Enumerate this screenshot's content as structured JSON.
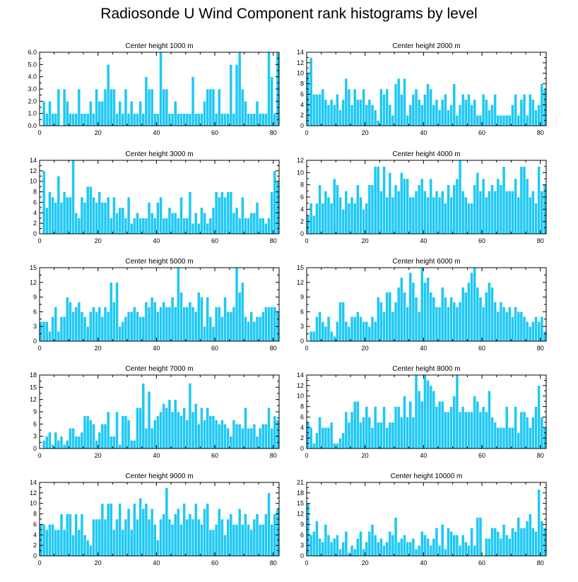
{
  "figure": {
    "title": "Radiosonde U Wind Component rank histograms by level",
    "bar_color": "#1ec8f5"
  },
  "chart_data": [
    {
      "type": "bar",
      "title": "Center height 1000 m",
      "xlim": [
        0,
        82
      ],
      "ylim": [
        0,
        6
      ],
      "yticks": [
        "0.0",
        "1.0",
        "2.0",
        "3.0",
        "4.0",
        "5.0",
        "6.0"
      ],
      "xticks": [
        "0",
        "20",
        "40",
        "60",
        "80"
      ],
      "values": [
        0,
        2,
        1,
        2,
        1,
        1,
        3,
        0,
        3,
        2,
        1,
        1,
        1,
        3,
        1,
        1,
        1,
        2,
        1,
        3,
        2,
        2,
        3,
        5,
        3,
        3,
        1,
        2,
        1,
        3,
        1,
        2,
        1,
        1,
        2,
        1,
        4,
        3,
        3,
        1,
        1,
        6,
        3,
        3,
        1,
        1,
        2,
        1,
        1,
        1,
        1,
        1,
        4,
        1,
        1,
        1,
        2,
        3,
        3,
        3,
        1,
        3,
        1,
        1,
        1,
        5,
        1,
        5,
        6,
        3,
        2,
        1,
        1,
        1,
        2,
        1,
        1,
        1,
        6,
        4,
        1,
        6
      ]
    },
    {
      "type": "bar",
      "title": "Center height 2000 m",
      "xlim": [
        0,
        82
      ],
      "ylim": [
        0,
        14
      ],
      "yticks": [
        "0",
        "2",
        "4",
        "6",
        "8",
        "10",
        "12",
        "14"
      ],
      "xticks": [
        "0",
        "20",
        "40",
        "60",
        "80"
      ],
      "values": [
        10,
        13,
        6,
        6,
        6,
        7,
        5,
        4,
        5,
        4,
        6,
        3,
        5,
        9,
        7,
        4,
        7,
        5,
        5,
        7,
        4,
        5,
        4,
        3,
        1,
        7,
        6,
        7,
        4,
        2,
        8,
        9,
        6,
        9,
        2,
        4,
        6,
        7,
        5,
        4,
        6,
        8,
        7,
        4,
        5,
        3,
        5,
        6,
        3,
        4,
        8,
        2,
        4,
        6,
        5,
        6,
        4,
        5,
        2,
        2,
        6,
        5,
        3,
        4,
        6,
        2,
        2,
        2,
        2,
        2,
        4,
        6,
        2,
        5,
        6,
        2,
        6,
        5,
        3,
        4,
        8,
        7
      ]
    },
    {
      "type": "bar",
      "title": "Center height 3000 m",
      "xlim": [
        0,
        82
      ],
      "ylim": [
        0,
        14
      ],
      "yticks": [
        "0",
        "2",
        "4",
        "6",
        "8",
        "10",
        "12",
        "14"
      ],
      "xticks": [
        "0",
        "20",
        "40",
        "60",
        "80"
      ],
      "values": [
        0,
        12,
        5,
        8,
        7,
        6,
        11,
        6,
        8,
        7,
        7,
        14,
        4,
        3,
        7,
        6,
        9,
        9,
        7,
        6,
        8,
        6,
        6,
        7,
        3,
        7,
        4,
        5,
        5,
        3,
        7,
        2,
        3,
        4,
        3,
        3,
        3,
        6,
        4,
        3,
        6,
        7,
        3,
        3,
        5,
        4,
        4,
        3,
        7,
        3,
        3,
        8,
        2,
        4,
        2,
        5,
        4,
        2,
        3,
        5,
        8,
        7,
        8,
        7,
        8,
        8,
        4,
        5,
        3,
        7,
        3,
        3,
        4,
        4,
        6,
        3,
        3,
        2,
        3,
        8,
        12,
        10
      ]
    },
    {
      "type": "bar",
      "title": "Center height 4000 m",
      "xlim": [
        0,
        82
      ],
      "ylim": [
        0,
        12
      ],
      "yticks": [
        "0",
        "2",
        "4",
        "6",
        "8",
        "10",
        "12"
      ],
      "xticks": [
        "0",
        "20",
        "40",
        "60",
        "80"
      ],
      "values": [
        3,
        5,
        3,
        5,
        8,
        5,
        7,
        6,
        5,
        9,
        8,
        6,
        4,
        7,
        5,
        6,
        5,
        8,
        6,
        4,
        5,
        8,
        8,
        11,
        11,
        7,
        11,
        6,
        10,
        6,
        8,
        7,
        10,
        9,
        9,
        6,
        6,
        7,
        8,
        9,
        7,
        6,
        9,
        6,
        7,
        6,
        7,
        5,
        8,
        6,
        8,
        9,
        12,
        7,
        6,
        5,
        5,
        8,
        10,
        7,
        9,
        6,
        7,
        8,
        7,
        9,
        8,
        11,
        7,
        7,
        7,
        9,
        6,
        11,
        11,
        9,
        6,
        7,
        5,
        11,
        7,
        8
      ]
    },
    {
      "type": "bar",
      "title": "Center height 5000 m",
      "xlim": [
        0,
        82
      ],
      "ylim": [
        0,
        15
      ],
      "yticks": [
        "0",
        "3",
        "6",
        "9",
        "12",
        "15"
      ],
      "xticks": [
        "0",
        "20",
        "40",
        "60",
        "80"
      ],
      "values": [
        4,
        4,
        4,
        2,
        5,
        7,
        2,
        5,
        5,
        9,
        8,
        6,
        7,
        8,
        6,
        5,
        3,
        6,
        7,
        6,
        7,
        5,
        7,
        6,
        12,
        8,
        12,
        3,
        4,
        5,
        6,
        6,
        7,
        6,
        5,
        5,
        8,
        7,
        9,
        8,
        6,
        7,
        8,
        7,
        7,
        9,
        7,
        15,
        10,
        7,
        7,
        8,
        7,
        6,
        10,
        9,
        3,
        9,
        5,
        3,
        7,
        7,
        5,
        9,
        6,
        6,
        7,
        15,
        10,
        12,
        5,
        4,
        6,
        4,
        5,
        5,
        6,
        7,
        7,
        7,
        7,
        6
      ]
    },
    {
      "type": "bar",
      "title": "Center height 6000 m",
      "xlim": [
        0,
        82
      ],
      "ylim": [
        0,
        15
      ],
      "yticks": [
        "0",
        "3",
        "6",
        "9",
        "12",
        "15"
      ],
      "xticks": [
        "0",
        "20",
        "40",
        "60",
        "80"
      ],
      "values": [
        0,
        2,
        2,
        5,
        6,
        4,
        3,
        5,
        2,
        1,
        4,
        8,
        8,
        4,
        3,
        5,
        5,
        6,
        5,
        4,
        4,
        3,
        5,
        4,
        9,
        8,
        6,
        10,
        10,
        6,
        8,
        11,
        13,
        10,
        7,
        14,
        12,
        9,
        6,
        15,
        12,
        13,
        10,
        9,
        7,
        7,
        11,
        9,
        7,
        9,
        8,
        7,
        8,
        11,
        10,
        12,
        14,
        15,
        11,
        9,
        7,
        10,
        12,
        11,
        8,
        6,
        8,
        7,
        6,
        7,
        5,
        7,
        6,
        6,
        5,
        4,
        3,
        4,
        5,
        4,
        5,
        2
      ]
    },
    {
      "type": "bar",
      "title": "Center height 7000 m",
      "xlim": [
        0,
        82
      ],
      "ylim": [
        0,
        18
      ],
      "yticks": [
        "0",
        "3",
        "6",
        "9",
        "12",
        "15",
        "18"
      ],
      "xticks": [
        "0",
        "20",
        "40",
        "60",
        "80"
      ],
      "values": [
        0,
        2,
        3,
        4,
        1,
        4,
        2,
        3,
        1,
        2,
        5,
        5,
        3,
        3,
        4,
        8,
        8,
        7,
        6,
        2,
        4,
        6,
        6,
        9,
        3,
        3,
        9,
        1,
        8,
        8,
        7,
        2,
        2,
        10,
        10,
        16,
        5,
        14,
        5,
        7,
        8,
        9,
        11,
        10,
        12,
        9,
        12,
        9,
        8,
        10,
        7,
        16,
        9,
        11,
        6,
        10,
        7,
        10,
        8,
        8,
        7,
        6,
        7,
        6,
        5,
        3,
        7,
        6,
        6,
        5,
        10,
        5,
        5,
        6,
        3,
        5,
        6,
        6,
        10,
        5,
        8,
        7
      ]
    },
    {
      "type": "bar",
      "title": "Center height 8000 m",
      "xlim": [
        0,
        82
      ],
      "ylim": [
        0,
        14
      ],
      "yticks": [
        "0",
        "2",
        "4",
        "6",
        "8",
        "10",
        "12",
        "14"
      ],
      "xticks": [
        "0",
        "20",
        "40",
        "60",
        "80"
      ],
      "values": [
        5,
        4,
        1,
        3,
        6,
        4,
        4,
        4,
        5,
        1,
        1,
        2,
        3,
        7,
        5,
        7,
        9,
        9,
        5,
        6,
        8,
        6,
        4,
        8,
        5,
        5,
        8,
        4,
        5,
        5,
        8,
        8,
        6,
        10,
        6,
        9,
        6,
        14,
        11,
        9,
        14,
        13,
        12,
        11,
        8,
        9,
        9,
        7,
        7,
        8,
        10,
        14,
        7,
        8,
        7,
        7,
        7,
        10,
        9,
        7,
        8,
        7,
        11,
        6,
        5,
        4,
        4,
        4,
        8,
        4,
        4,
        8,
        3,
        7,
        7,
        6,
        4,
        6,
        8,
        12,
        6,
        4
      ]
    },
    {
      "type": "bar",
      "title": "Center height 9000 m",
      "xlim": [
        0,
        82
      ],
      "ylim": [
        0,
        14
      ],
      "yticks": [
        "0",
        "2",
        "4",
        "6",
        "8",
        "10",
        "12",
        "14"
      ],
      "xticks": [
        "0",
        "20",
        "40",
        "60",
        "80"
      ],
      "values": [
        6,
        6,
        5,
        6,
        6,
        5,
        5,
        8,
        5,
        8,
        8,
        4,
        8,
        5,
        8,
        4,
        3,
        2,
        7,
        7,
        7,
        10,
        7,
        10,
        10,
        5,
        7,
        10,
        5,
        7,
        9,
        5,
        10,
        7,
        11,
        9,
        10,
        7,
        9,
        6,
        3,
        7,
        8,
        13,
        7,
        6,
        8,
        9,
        6,
        10,
        7,
        8,
        7,
        10,
        7,
        6,
        9,
        10,
        5,
        5,
        6,
        9,
        7,
        4,
        7,
        8,
        6,
        6,
        9,
        6,
        8,
        6,
        5,
        7,
        8,
        6,
        6,
        8,
        12,
        6,
        8,
        9
      ]
    },
    {
      "type": "bar",
      "title": "Center height 10000 m",
      "xlim": [
        0,
        82
      ],
      "ylim": [
        0,
        21
      ],
      "yticks": [
        "0",
        "3",
        "6",
        "9",
        "12",
        "15",
        "18",
        "21"
      ],
      "xticks": [
        "0",
        "20",
        "40",
        "60",
        "80"
      ],
      "values": [
        15,
        6,
        7,
        10,
        5,
        4,
        9,
        6,
        4,
        5,
        6,
        2,
        4,
        7,
        1,
        3,
        2,
        5,
        7,
        2,
        4,
        7,
        9,
        6,
        4,
        5,
        3,
        4,
        7,
        6,
        11,
        4,
        5,
        6,
        4,
        4,
        5,
        2,
        3,
        7,
        6,
        5,
        3,
        5,
        8,
        3,
        9,
        2,
        8,
        7,
        6,
        6,
        3,
        6,
        4,
        3,
        8,
        3,
        11,
        11,
        0,
        5,
        5,
        8,
        8,
        7,
        5,
        9,
        6,
        5,
        8,
        7,
        11,
        8,
        8,
        10,
        12,
        8,
        7,
        19,
        10,
        8
      ]
    }
  ]
}
